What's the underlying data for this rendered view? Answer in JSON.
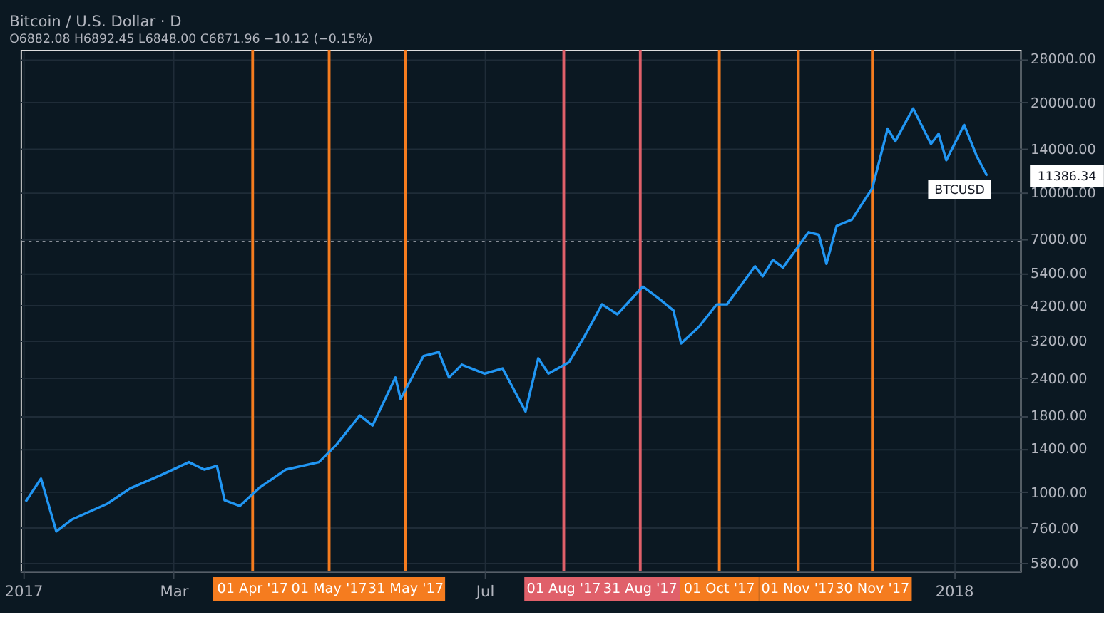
{
  "chart_data": {
    "type": "line",
    "title": "Bitcoin / U.S. Dollar · D",
    "subtitle": "O6882.08 H6892.45 L6848.00 C6871.96 −10.12 (−0.15%)",
    "x": [
      "2017-01-02",
      "2017-01-08",
      "2017-01-14",
      "2017-01-20",
      "2017-02-03",
      "2017-02-12",
      "2017-02-24",
      "2017-03-07",
      "2017-03-13",
      "2017-03-18",
      "2017-03-21",
      "2017-03-27",
      "2017-04-04",
      "2017-04-14",
      "2017-04-27",
      "2017-05-04",
      "2017-05-13",
      "2017-05-18",
      "2017-05-27",
      "2017-05-29",
      "2017-06-07",
      "2017-06-13",
      "2017-06-17",
      "2017-06-22",
      "2017-07-01",
      "2017-07-08",
      "2017-07-17",
      "2017-07-22",
      "2017-07-26",
      "2017-08-03",
      "2017-08-09",
      "2017-08-16",
      "2017-08-22",
      "2017-09-01",
      "2017-09-07",
      "2017-09-13",
      "2017-09-16",
      "2017-09-23",
      "2017-09-30",
      "2017-10-04",
      "2017-10-15",
      "2017-10-18",
      "2017-10-22",
      "2017-10-26",
      "2017-11-05",
      "2017-11-09",
      "2017-11-12",
      "2017-11-16",
      "2017-11-22",
      "2017-11-30",
      "2017-12-06",
      "2017-12-09",
      "2017-12-16",
      "2017-12-23",
      "2017-12-26",
      "2017-12-29",
      "2018-01-05",
      "2018-01-10",
      "2018-01-14"
    ],
    "series": [
      {
        "color": "#2196f3",
        "values": [
          930,
          1110,
          740,
          810,
          915,
          1030,
          1140,
          1260,
          1190,
          1225,
          940,
          900,
          1040,
          1190,
          1260,
          1445,
          1805,
          1670,
          2415,
          2050,
          2850,
          2935,
          2415,
          2665,
          2490,
          2590,
          1860,
          2800,
          2490,
          2715,
          3300,
          4240,
          3930,
          4860,
          4455,
          4045,
          3140,
          3565,
          4240,
          4240,
          5680,
          5255,
          5965,
          5625,
          7385,
          7240,
          5790,
          7750,
          8135,
          10365,
          16365,
          14850,
          19110,
          14560,
          15740,
          12840,
          16850,
          13220,
          11386.34
        ]
      }
    ],
    "xlim": [
      "2016-12-31",
      "2018-01-27"
    ],
    "xticks": [
      {
        "value": "2017-01-01",
        "label": "2017"
      },
      {
        "value": "2017-03-01",
        "label": "Mar"
      },
      {
        "value": "2017-07-01",
        "label": "Jul"
      },
      {
        "value": "2018-01-01",
        "label": "2018"
      }
    ],
    "ylim": [
      545,
      30000
    ],
    "log": true,
    "yticks": [
      {
        "value": 580,
        "label": "580.00"
      },
      {
        "value": 760,
        "label": "760.00"
      },
      {
        "value": 1000,
        "label": "1000.00"
      },
      {
        "value": 1400,
        "label": "1400.00"
      },
      {
        "value": 1800,
        "label": "1800.00"
      },
      {
        "value": 2400,
        "label": "2400.00"
      },
      {
        "value": 3200,
        "label": "3200.00"
      },
      {
        "value": 4200,
        "label": "4200.00"
      },
      {
        "value": 5400,
        "label": "5400.00"
      },
      {
        "value": 7000,
        "label": "7000.00"
      },
      {
        "value": 10000,
        "label": "10000.00"
      },
      {
        "value": 14000,
        "label": "14000.00"
      },
      {
        "value": 20000,
        "label": "20000.00"
      },
      {
        "value": 28000,
        "label": "28000.00"
      }
    ],
    "grid": true,
    "line_style": "solid",
    "marker": "none",
    "ref_lines": [
      {
        "axis": "x",
        "value": "2017-04-01",
        "label": "01 Apr '17",
        "color": "#f57c1f"
      },
      {
        "axis": "x",
        "value": "2017-05-01",
        "label": "01 May '17",
        "color": "#f57c1f"
      },
      {
        "axis": "x",
        "value": "2017-05-31",
        "label": "31 May '17",
        "color": "#f57c1f"
      },
      {
        "axis": "x",
        "value": "2017-08-01",
        "label": "01 Aug '17",
        "color": "#e0606a"
      },
      {
        "axis": "x",
        "value": "2017-08-31",
        "label": "31 Aug '17",
        "color": "#e0606a"
      },
      {
        "axis": "x",
        "value": "2017-10-01",
        "label": "01 Oct '17",
        "color": "#f57c1f"
      },
      {
        "axis": "x",
        "value": "2017-11-01",
        "label": "01 Nov '17",
        "color": "#f57c1f"
      },
      {
        "axis": "x",
        "value": "2017-11-30",
        "label": "30 Nov '17",
        "color": "#f57c1f"
      },
      {
        "axis": "y",
        "value": 6871.96,
        "color": "#8a9099",
        "line_style": "dotted"
      }
    ],
    "annotations": [
      {
        "text": "BTCUSD",
        "x": "2018-01-14",
        "y": 11386.34
      },
      "11386.34"
    ]
  }
}
